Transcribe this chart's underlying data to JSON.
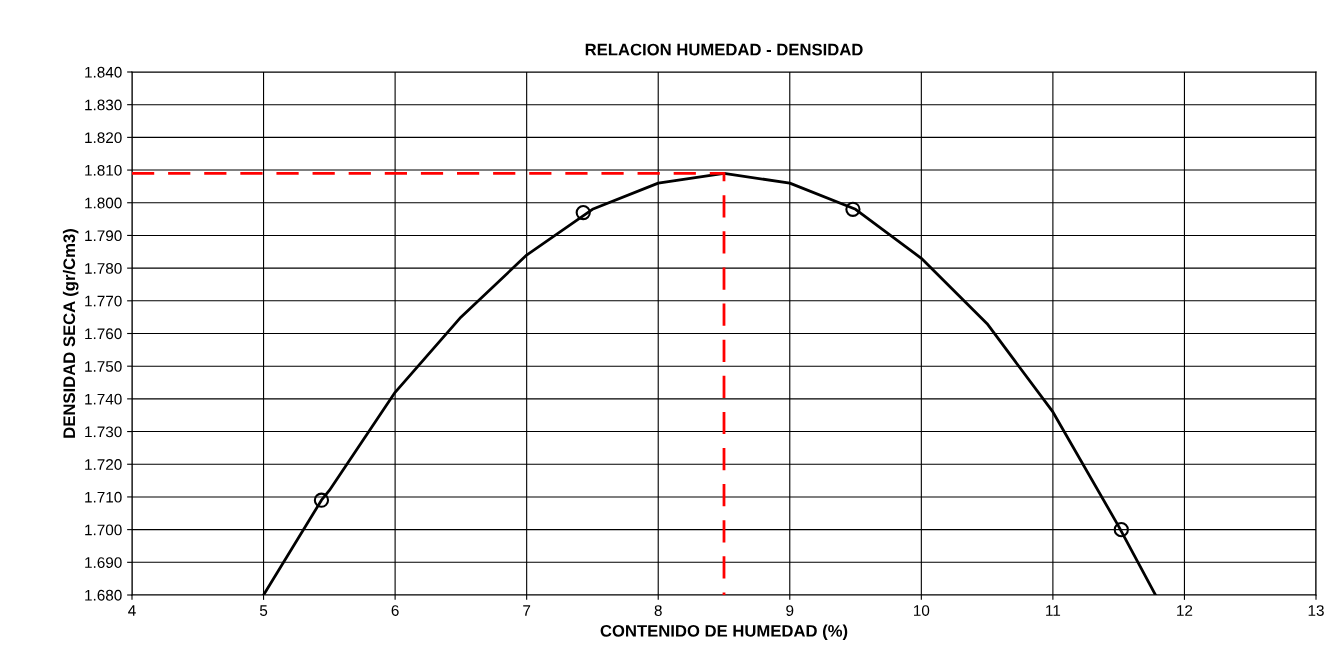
{
  "chart_data": {
    "type": "line",
    "title": "RELACION HUMEDAD - DENSIDAD",
    "xlabel": "CONTENIDO DE HUMEDAD (%)",
    "ylabel": "DENSIDAD SECA (gr/Cm3)",
    "xlim": [
      4,
      13
    ],
    "xticks": [
      4,
      5,
      6,
      7,
      8,
      9,
      10,
      11,
      12,
      13
    ],
    "ylim": [
      1.68,
      1.84
    ],
    "yticks": [
      {
        "value": 1.68,
        "label": "1.680"
      },
      {
        "value": 1.69,
        "label": "1.690"
      },
      {
        "value": 1.7,
        "label": "1.700"
      },
      {
        "value": 1.71,
        "label": "1.710"
      },
      {
        "value": 1.72,
        "label": "1.720"
      },
      {
        "value": 1.73,
        "label": "1.730"
      },
      {
        "value": 1.74,
        "label": "1.740"
      },
      {
        "value": 1.75,
        "label": "1.750"
      },
      {
        "value": 1.76,
        "label": "1.760"
      },
      {
        "value": 1.77,
        "label": "1.770"
      },
      {
        "value": 1.78,
        "label": "1.780"
      },
      {
        "value": 1.79,
        "label": "1.790"
      },
      {
        "value": 1.8,
        "label": "1.800"
      },
      {
        "value": 1.81,
        "label": "1.810"
      },
      {
        "value": 1.82,
        "label": "1.820"
      },
      {
        "value": 1.83,
        "label": "1.830"
      },
      {
        "value": 1.84,
        "label": "1.840"
      }
    ],
    "grid": true,
    "legend": false,
    "series": [
      {
        "color": "#000000",
        "marker": "none",
        "line_style": "solid",
        "x": [
          5.0,
          5.44,
          5.5,
          6,
          6.5,
          7,
          7.5,
          8,
          8.5,
          9,
          9.5,
          10,
          10.5,
          11,
          11.5,
          11.78
        ],
        "values": [
          1.68,
          1.709,
          1.712,
          1.742,
          1.765,
          1.784,
          1.798,
          1.806,
          1.809,
          1.806,
          1.798,
          1.783,
          1.763,
          1.736,
          1.701,
          1.68
        ]
      },
      {
        "type": "scatter",
        "color": "#000000",
        "marker": "circle",
        "x": [
          5.44,
          7.43,
          9.48,
          11.52
        ],
        "values": [
          1.709,
          1.797,
          1.798,
          1.7
        ]
      },
      {
        "type": "line",
        "color": "#ff0000",
        "marker": "none",
        "line_style": "dashed",
        "x": [
          4,
          8.5,
          8.5
        ],
        "values": [
          1.809,
          1.809,
          1.68
        ]
      }
    ]
  }
}
